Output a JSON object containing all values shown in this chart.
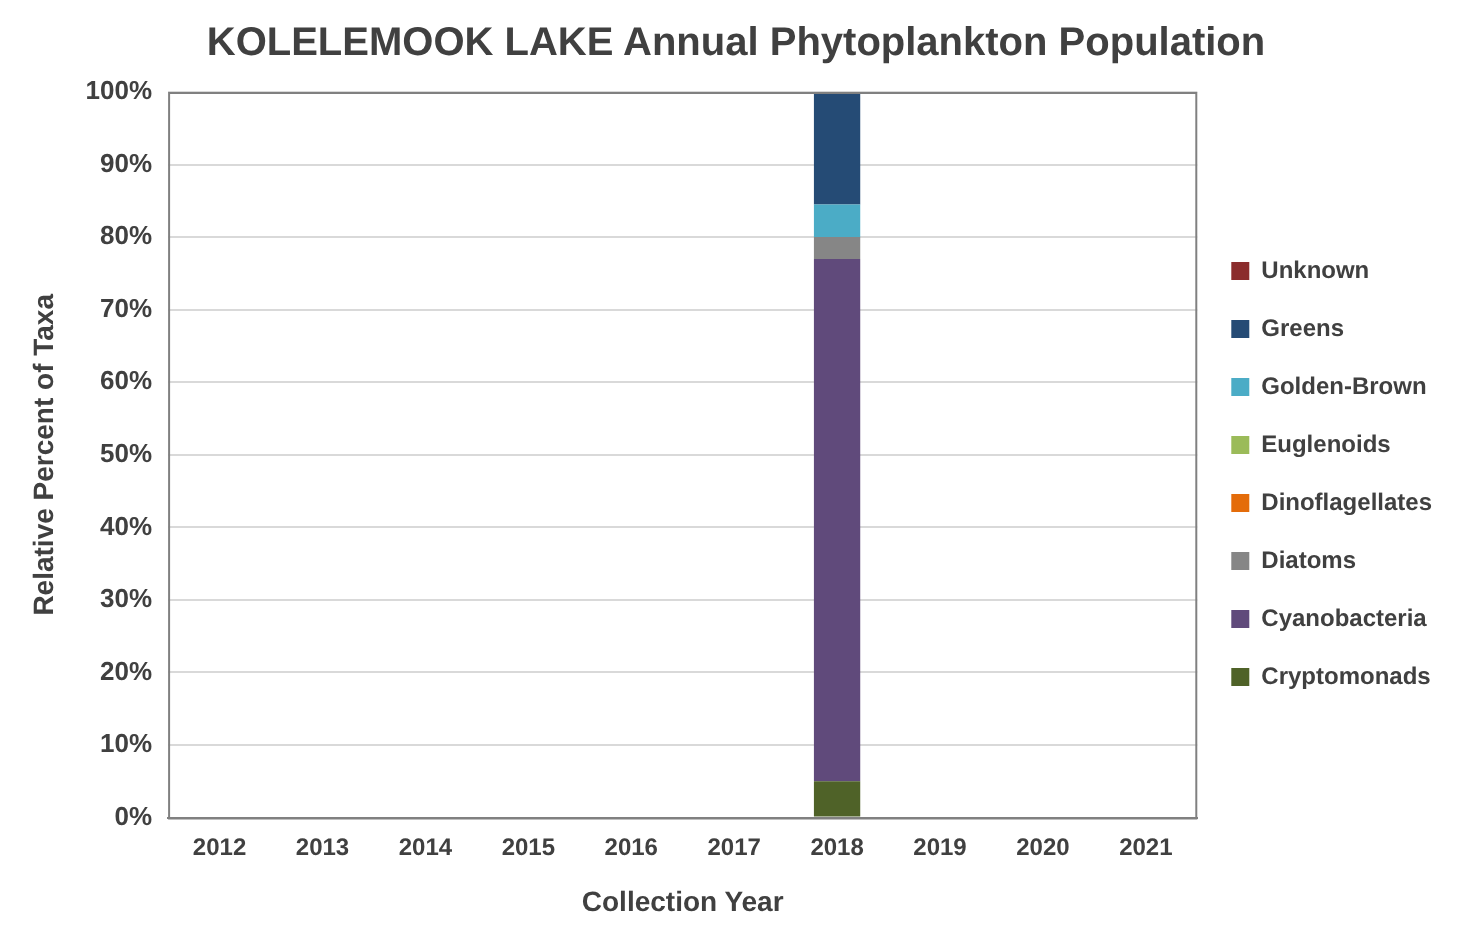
{
  "chart_data": {
    "type": "bar",
    "stacked": true,
    "title": "KOLELEMOOK LAKE Annual Phytoplankton Population",
    "xlabel": "Collection Year",
    "ylabel": "Relative Percent of Taxa",
    "categories": [
      "2012",
      "2013",
      "2014",
      "2015",
      "2016",
      "2017",
      "2018",
      "2019",
      "2020",
      "2021"
    ],
    "series": [
      {
        "name": "Cryptomonads",
        "color": "#4f6228",
        "values": [
          null,
          null,
          null,
          null,
          null,
          null,
          5,
          null,
          null,
          null
        ]
      },
      {
        "name": "Cyanobacteria",
        "color": "#604a7b",
        "values": [
          null,
          null,
          null,
          null,
          null,
          null,
          72,
          null,
          null,
          null
        ]
      },
      {
        "name": "Diatoms",
        "color": "#868686",
        "values": [
          null,
          null,
          null,
          null,
          null,
          null,
          3,
          null,
          null,
          null
        ]
      },
      {
        "name": "Dinoflagellates",
        "color": "#e46c0a",
        "values": [
          null,
          null,
          null,
          null,
          null,
          null,
          0,
          null,
          null,
          null
        ]
      },
      {
        "name": "Euglenoids",
        "color": "#9bbb59",
        "values": [
          null,
          null,
          null,
          null,
          null,
          null,
          0,
          null,
          null,
          null
        ]
      },
      {
        "name": "Golden-Brown",
        "color": "#4bacc6",
        "values": [
          null,
          null,
          null,
          null,
          null,
          null,
          4.5,
          null,
          null,
          null
        ]
      },
      {
        "name": "Greens",
        "color": "#254b75",
        "values": [
          null,
          null,
          null,
          null,
          null,
          null,
          15.5,
          null,
          null,
          null
        ]
      },
      {
        "name": "Unknown",
        "color": "#8b2c2c",
        "values": [
          null,
          null,
          null,
          null,
          null,
          null,
          0,
          null,
          null,
          null
        ]
      }
    ],
    "ylim": [
      0,
      100
    ],
    "yticks": [
      {
        "value": 0,
        "label": "0%"
      },
      {
        "value": 10,
        "label": "10%"
      },
      {
        "value": 20,
        "label": "20%"
      },
      {
        "value": 30,
        "label": "30%"
      },
      {
        "value": 40,
        "label": "40%"
      },
      {
        "value": 50,
        "label": "50%"
      },
      {
        "value": 60,
        "label": "60%"
      },
      {
        "value": 70,
        "label": "70%"
      },
      {
        "value": 80,
        "label": "80%"
      },
      {
        "value": 90,
        "label": "90%"
      },
      {
        "value": 100,
        "label": "100%"
      }
    ],
    "grid": "y",
    "legend": "right"
  }
}
